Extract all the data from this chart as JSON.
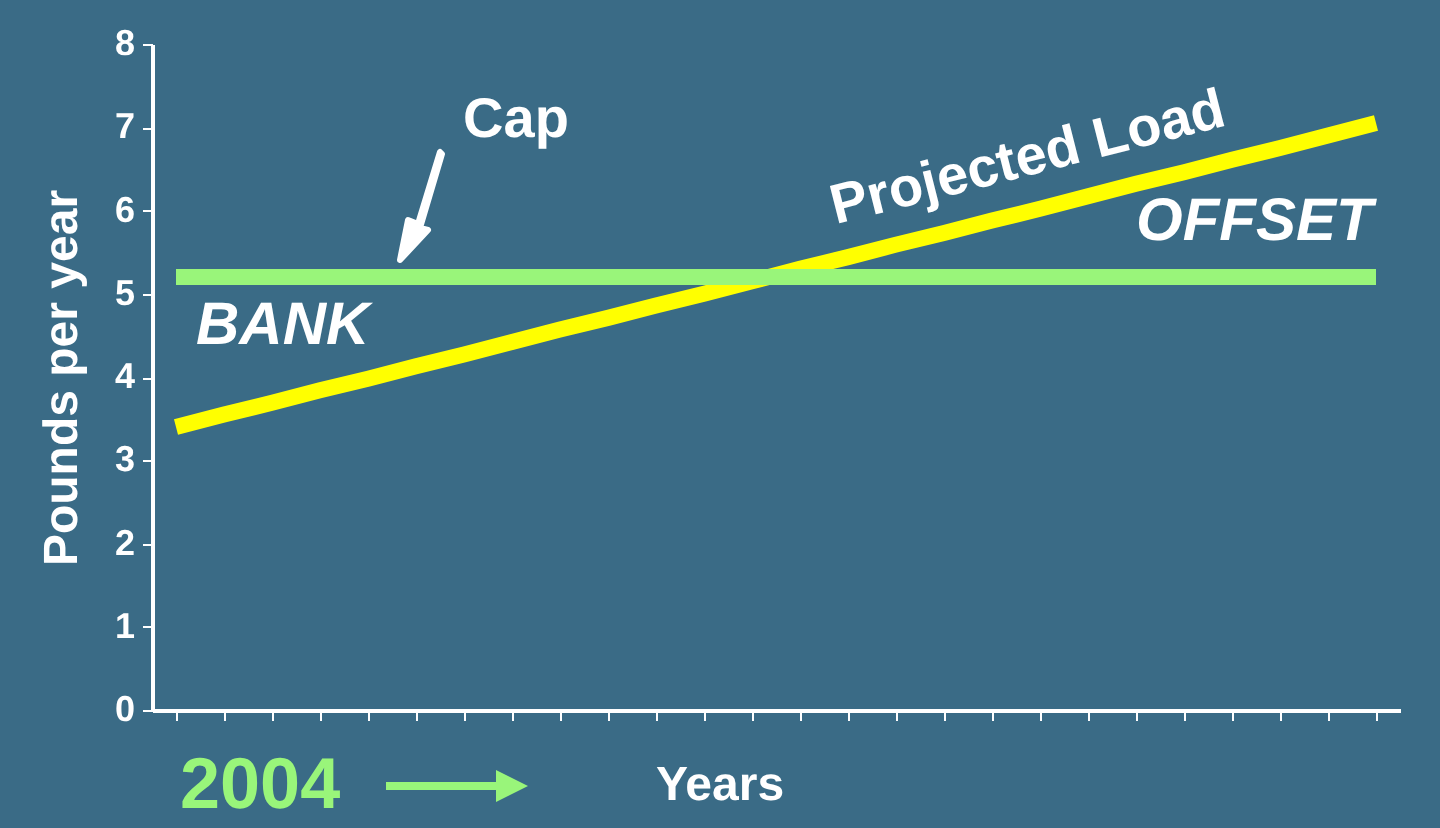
{
  "chart_data": {
    "type": "line",
    "xlabel": "Years",
    "ylabel": "Pounds per year",
    "categories": [
      null,
      null,
      null,
      null,
      null,
      null,
      null,
      null,
      null,
      null,
      null,
      null,
      null,
      null,
      null,
      null,
      null,
      null,
      null,
      null,
      null,
      null,
      null,
      null,
      null,
      null
    ],
    "ylim": [
      0,
      8
    ],
    "yticks": [
      0,
      1,
      2,
      3,
      4,
      5,
      6,
      7,
      8
    ],
    "grid": false,
    "legend": false,
    "series": [
      {
        "name": "Projected Load",
        "color": "#ffff00",
        "values": [
          3.4,
          3.55,
          3.69,
          3.84,
          3.98,
          4.13,
          4.27,
          4.42,
          4.57,
          4.71,
          4.86,
          5.0,
          5.15,
          5.3,
          5.44,
          5.59,
          5.73,
          5.88,
          6.02,
          6.17,
          6.32,
          6.46,
          6.61,
          6.75,
          6.9,
          7.05
        ]
      },
      {
        "name": "Cap",
        "color": "#99f57a",
        "values": [
          5.2,
          5.2,
          5.2,
          5.2,
          5.2,
          5.2,
          5.2,
          5.2,
          5.2,
          5.2,
          5.2,
          5.2,
          5.2,
          5.2,
          5.2,
          5.2,
          5.2,
          5.2,
          5.2,
          5.2,
          5.2,
          5.2,
          5.2,
          5.2,
          5.2,
          5.2
        ]
      }
    ],
    "annotations": [
      "BANK",
      "OFFSET",
      "2004"
    ]
  }
}
